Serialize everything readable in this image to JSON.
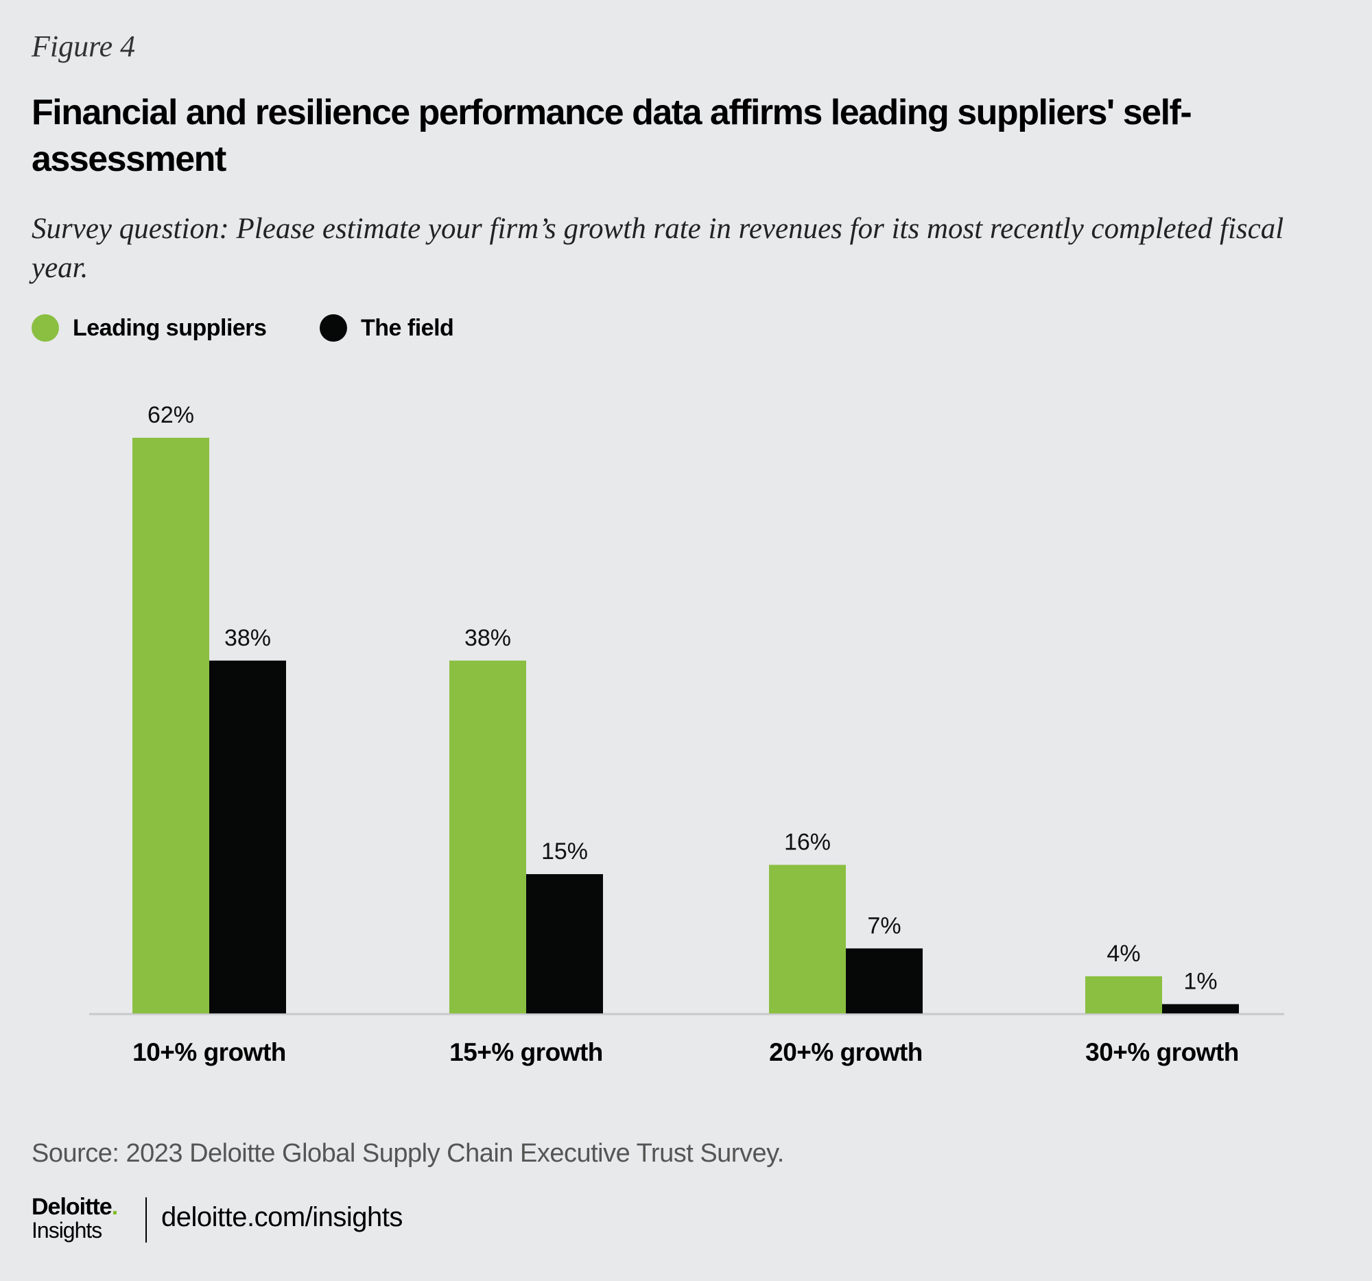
{
  "figure_label": "Figure 4",
  "title": "Financial and resilience performance data affirms leading suppliers' self-assessment",
  "subtitle": "Survey question: Please estimate your firm’s growth rate in revenues for its most recently completed fiscal year.",
  "source": "Source: 2023 Deloitte Global Supply Chain Executive Trust Survey.",
  "footer": {
    "logo_top": "Deloitte",
    "logo_bottom": "Insights",
    "url": "deloitte.com/insights"
  },
  "colors": {
    "leading": "#8abf41",
    "field": "#060808",
    "accent": "#86bc25"
  },
  "chart_data": {
    "type": "bar",
    "categories": [
      "10+% growth",
      "15+% growth",
      "20+% growth",
      "30+% growth"
    ],
    "series": [
      {
        "name": "Leading suppliers",
        "values": [
          62,
          38,
          16,
          4
        ],
        "labels": [
          "62%",
          "38%",
          "16%",
          "4%"
        ]
      },
      {
        "name": "The field",
        "values": [
          38,
          15,
          7,
          1
        ],
        "labels": [
          "38%",
          "15%",
          "7%",
          "1%"
        ]
      }
    ],
    "unit": "%",
    "ylim": [
      0,
      62
    ],
    "legend": "top-left",
    "grid": false
  }
}
